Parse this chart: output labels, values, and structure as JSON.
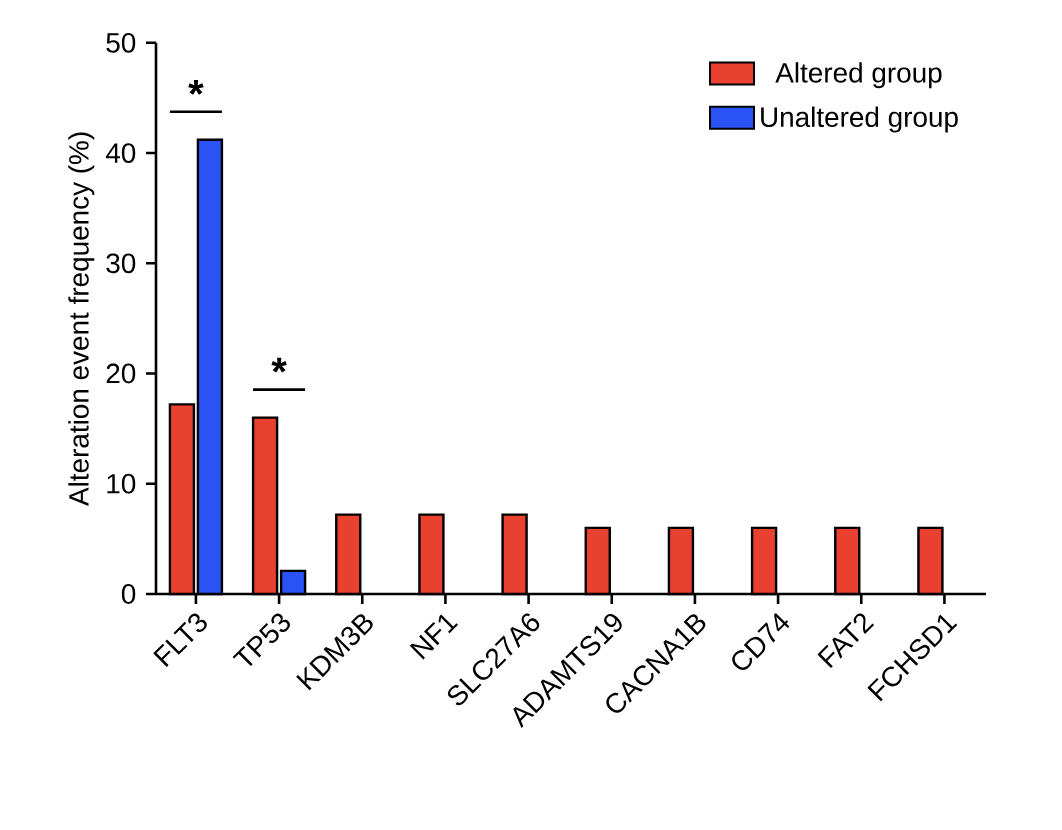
{
  "chart_data": {
    "type": "bar",
    "ylabel": "Alteration event frequency (%)",
    "categories": [
      "FLT3",
      "TP53",
      "KDM3B",
      "NF1",
      "SLC27A6",
      "ADAMTS19",
      "CACNA1B",
      "CD74",
      "FAT2",
      "FCHSD1"
    ],
    "series": [
      {
        "name": "Altered group",
        "color": "#e8412f",
        "values": [
          17.2,
          16.0,
          7.2,
          7.2,
          7.2,
          6.0,
          6.0,
          6.0,
          6.0,
          6.0
        ]
      },
      {
        "name": "Unaltered group",
        "color": "#2a52f5",
        "values": [
          41.2,
          2.1,
          null,
          null,
          null,
          null,
          null,
          null,
          null,
          null
        ]
      }
    ],
    "ylim": [
      0,
      50
    ],
    "yticks": [
      0,
      10,
      20,
      30,
      40,
      50
    ],
    "grid": false,
    "legend": "top right",
    "annotations": [
      "*",
      "*"
    ]
  }
}
